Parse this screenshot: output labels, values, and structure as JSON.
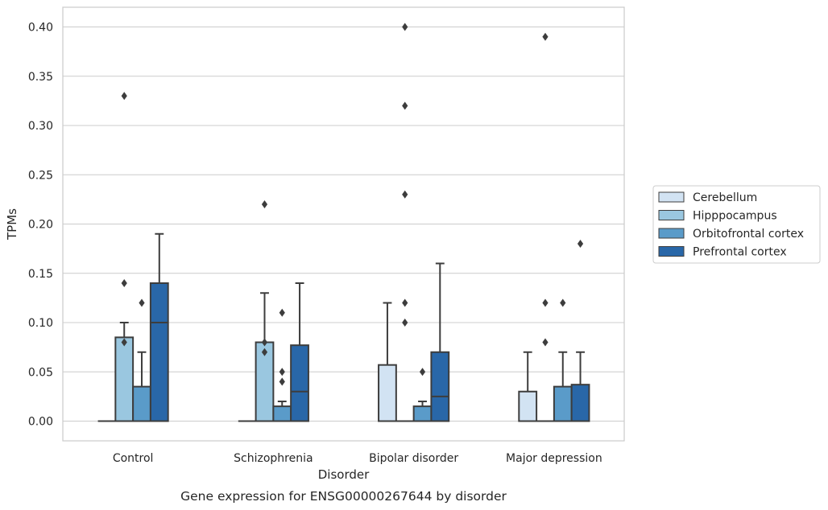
{
  "chart_data": {
    "type": "box",
    "title": "Gene expression for ENSG00000267644 by disorder",
    "xlabel": "Disorder",
    "ylabel": "TPMs",
    "ylim": [
      -0.02,
      0.42
    ],
    "yticks": [
      "0.00",
      "0.05",
      "0.10",
      "0.15",
      "0.20",
      "0.25",
      "0.30",
      "0.35",
      "0.40"
    ],
    "grid": true,
    "legend_position": "right",
    "categories": [
      "Control",
      "Schizophrenia",
      "Bipolar disorder",
      "Major depression"
    ],
    "series": [
      {
        "name": "Cerebellum",
        "color": "#d2e3f3",
        "boxes": [
          {
            "q1": 0,
            "median": 0,
            "q3": 0,
            "whisker_low": 0,
            "whisker_high": 0,
            "outliers": []
          },
          {
            "q1": 0,
            "median": 0,
            "q3": 0,
            "whisker_low": 0,
            "whisker_high": 0,
            "outliers": []
          },
          {
            "q1": 0,
            "median": 0,
            "q3": 0.057,
            "whisker_low": 0,
            "whisker_high": 0.12,
            "outliers": []
          },
          {
            "q1": 0,
            "median": 0,
            "q3": 0.03,
            "whisker_low": 0,
            "whisker_high": 0.07,
            "outliers": []
          }
        ]
      },
      {
        "name": "Hipppocampus",
        "color": "#9ac7e0",
        "boxes": [
          {
            "q1": 0,
            "median": 0,
            "q3": 0.085,
            "whisker_low": 0,
            "whisker_high": 0.1,
            "outliers": [
              0.14,
              0.08,
              0.33
            ]
          },
          {
            "q1": 0,
            "median": 0,
            "q3": 0.08,
            "whisker_low": 0,
            "whisker_high": 0.13,
            "outliers": [
              0.08,
              0.07,
              0.22
            ]
          },
          {
            "q1": 0,
            "median": 0,
            "q3": 0,
            "whisker_low": 0,
            "whisker_high": 0,
            "outliers": [
              0.12,
              0.1,
              0.23,
              0.32,
              0.4
            ]
          },
          {
            "q1": 0,
            "median": 0,
            "q3": 0,
            "whisker_low": 0,
            "whisker_high": 0,
            "outliers": [
              0.08,
              0.12,
              0.39
            ]
          }
        ]
      },
      {
        "name": "Orbitofrontal cortex",
        "color": "#5a9bc9",
        "boxes": [
          {
            "q1": 0,
            "median": 0,
            "q3": 0.035,
            "whisker_low": 0,
            "whisker_high": 0.07,
            "outliers": [
              0.12
            ]
          },
          {
            "q1": 0,
            "median": 0,
            "q3": 0.015,
            "whisker_low": 0,
            "whisker_high": 0.02,
            "outliers": [
              0.11,
              0.05,
              0.04
            ]
          },
          {
            "q1": 0,
            "median": 0,
            "q3": 0.015,
            "whisker_low": 0,
            "whisker_high": 0.02,
            "outliers": [
              0.05
            ]
          },
          {
            "q1": 0,
            "median": 0,
            "q3": 0.035,
            "whisker_low": 0,
            "whisker_high": 0.07,
            "outliers": [
              0.12
            ]
          }
        ]
      },
      {
        "name": "Prefrontal cortex",
        "color": "#2967a8",
        "boxes": [
          {
            "q1": 0,
            "median": 0.1,
            "q3": 0.14,
            "whisker_low": 0,
            "whisker_high": 0.19,
            "outliers": []
          },
          {
            "q1": 0,
            "median": 0.03,
            "q3": 0.077,
            "whisker_low": 0,
            "whisker_high": 0.14,
            "outliers": []
          },
          {
            "q1": 0,
            "median": 0.025,
            "q3": 0.07,
            "whisker_low": 0,
            "whisker_high": 0.16,
            "outliers": []
          },
          {
            "q1": 0,
            "median": 0,
            "q3": 0.037,
            "whisker_low": 0,
            "whisker_high": 0.07,
            "outliers": [
              0.18
            ]
          }
        ]
      }
    ]
  }
}
